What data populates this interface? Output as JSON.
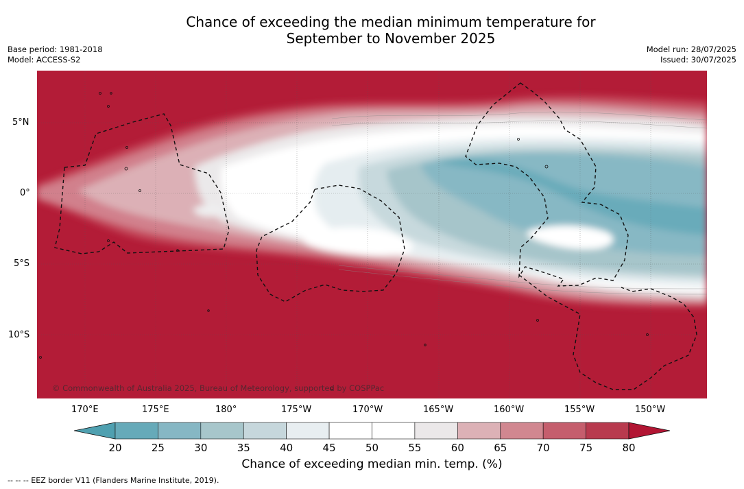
{
  "title": {
    "line1": "Chance of exceeding the median minimum temperature for",
    "line2": "September to November 2025"
  },
  "meta": {
    "base_period": "Base period: 1981-2018",
    "model": "Model: ACCESS-S2",
    "model_run": "Model run: 28/07/2025",
    "issued": "Issued: 30/07/2025"
  },
  "map": {
    "region": "Central equatorial Pacific",
    "lon_labels": [
      "170°E",
      "175°E",
      "180°",
      "175°W",
      "170°W",
      "165°W",
      "160°W",
      "155°W",
      "150°W"
    ],
    "lat_labels": [
      "5°N",
      "0°",
      "5°S",
      "10°S"
    ],
    "copyright": "© Commonwealth of Australia 2025, Bureau of Meteorology, supported by COSPPac",
    "colors": {
      "above": "#b41c36",
      "near_white": "#ffffff",
      "below": "#66aabb"
    }
  },
  "colorbar": {
    "ticks": [
      "20",
      "25",
      "30",
      "35",
      "40",
      "45",
      "50",
      "55",
      "60",
      "65",
      "70",
      "75",
      "80"
    ],
    "colors": [
      "#66aab9",
      "#86b7c4",
      "#a7c6cb",
      "#c6d7dc",
      "#e8eef1",
      "#ffffff",
      "#ffffff",
      "#ebe8e9",
      "#dcb1b6",
      "#d18790",
      "#c55e6d",
      "#b83a4e"
    ],
    "under_color": "#4fa0b0",
    "over_color": "#b21533",
    "label": "Chance of exceeding median min. temp. (%)"
  },
  "footer": "--  --  -- EEZ border V11 (Flanders Marine Institute, 2019)."
}
